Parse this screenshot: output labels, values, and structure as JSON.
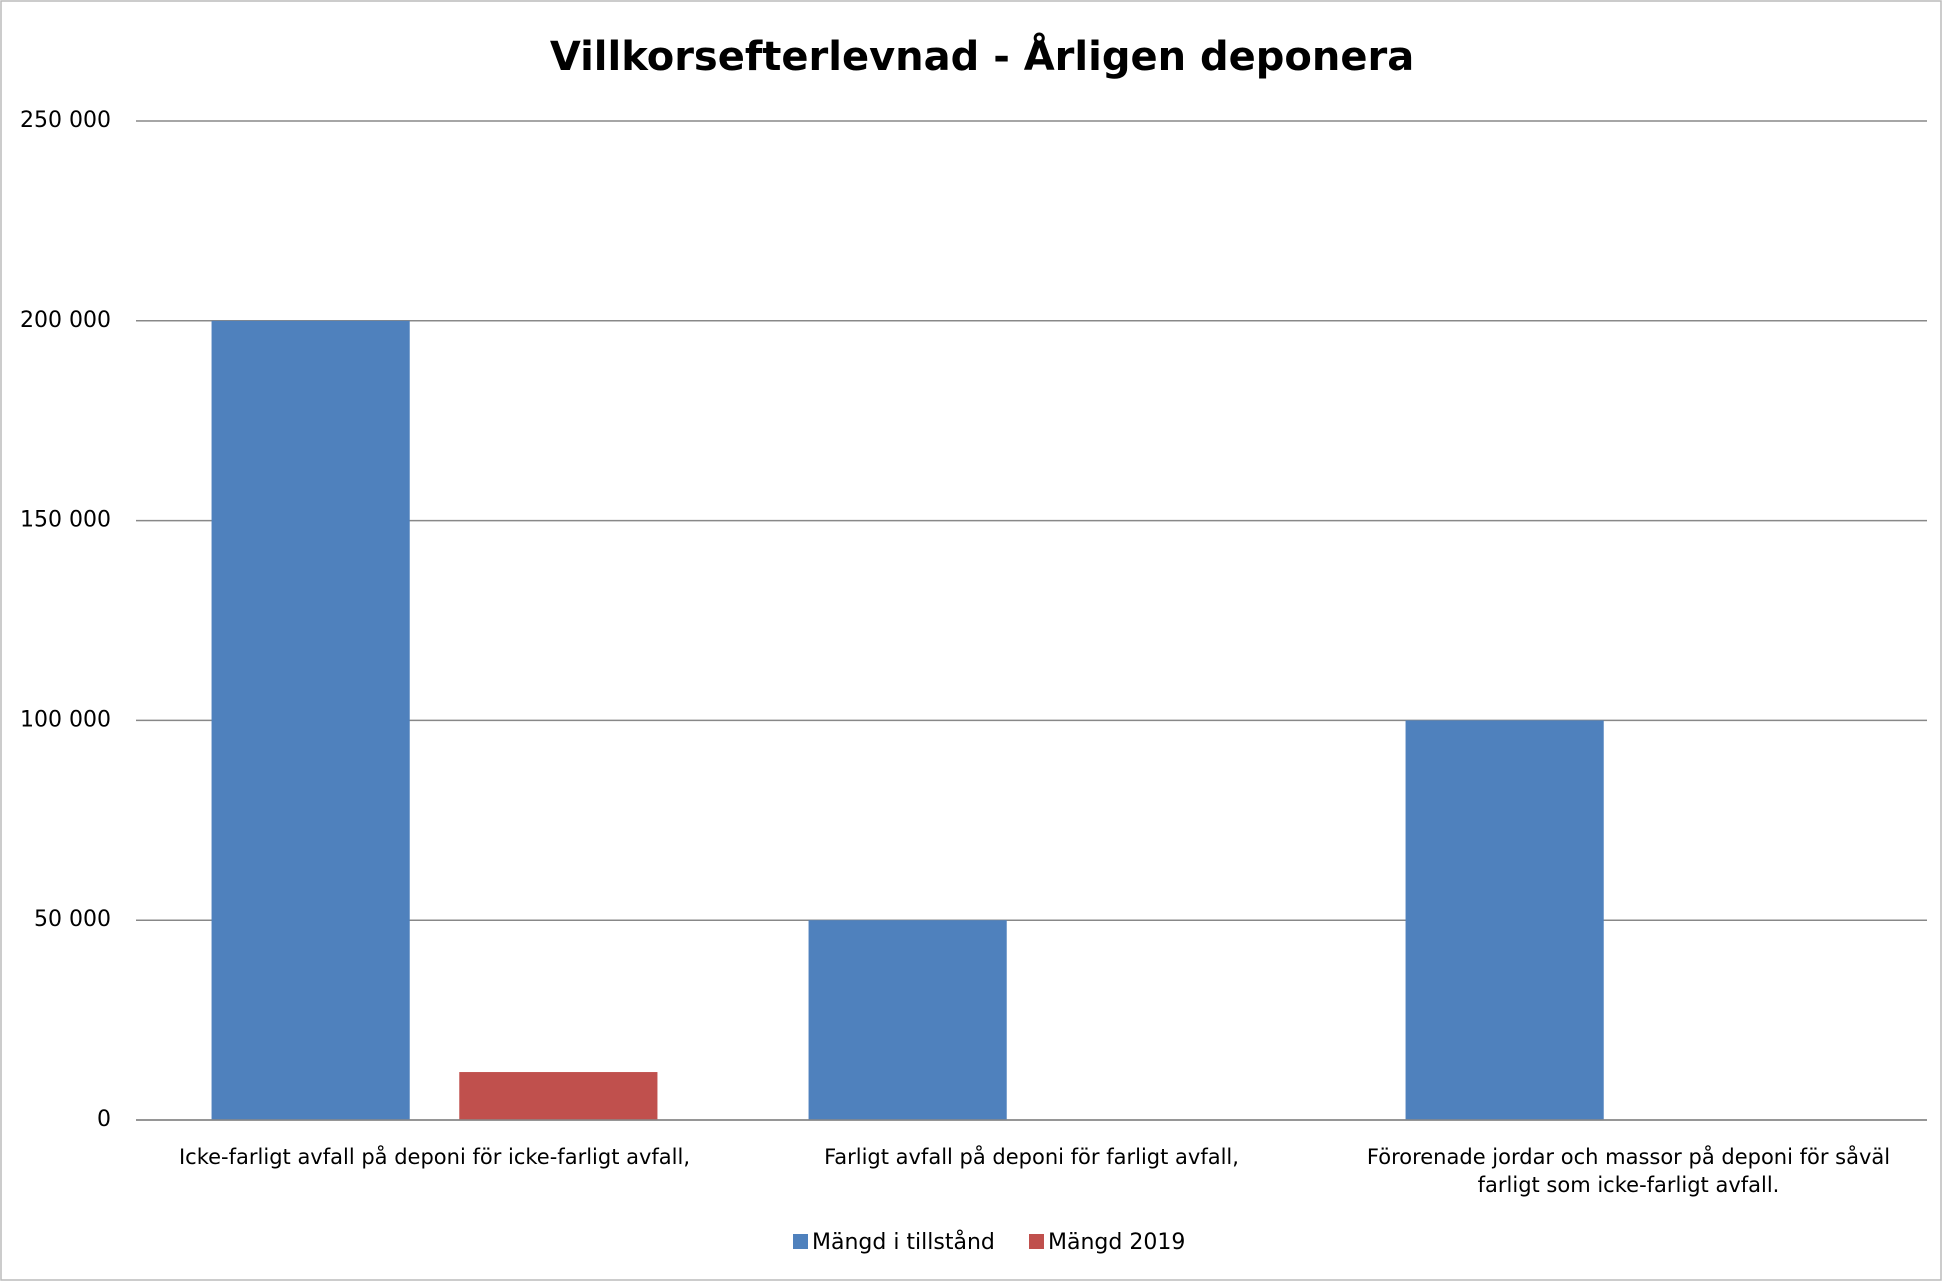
{
  "chart_data": {
    "type": "bar",
    "title": "Villkorsefterlevnad - Årligen deponera",
    "categories": [
      "Icke-farligt avfall på deponi för icke-farligt avfall,",
      "Farligt avfall på deponi för farligt avfall,",
      "Förorenade jordar och massor på deponi för såväl farligt som icke-farligt avfall."
    ],
    "series": [
      {
        "name": "Mängd i tillstånd",
        "color": "#4f81bd",
        "values": [
          200000,
          50000,
          100000
        ]
      },
      {
        "name": "Mängd 2019",
        "color": "#c0504d",
        "values": [
          12000,
          0,
          0
        ]
      }
    ],
    "ylim": [
      0,
      250000
    ],
    "yticks": [
      0,
      {
        "value": 50000,
        "label": "50 000"
      },
      {
        "value": 100000,
        "label": "100 000"
      },
      {
        "value": 150000,
        "label": "150 000"
      },
      {
        "value": 200000,
        "label": "200 000"
      },
      {
        "value": 250000,
        "label": "250 000"
      }
    ],
    "grid": true,
    "legend": "bottom"
  }
}
